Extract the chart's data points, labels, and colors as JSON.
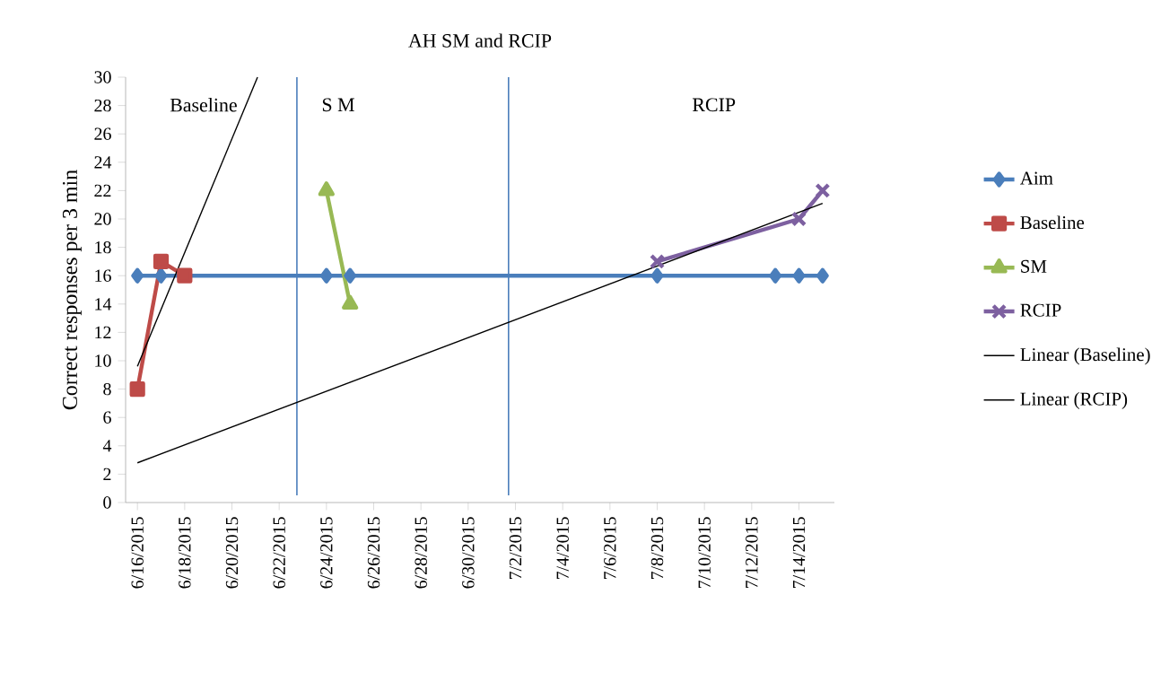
{
  "chart_data": {
    "type": "line",
    "title": "AH SM and RCIP",
    "ylabel": "Correct responses per 3 min",
    "xlim": [
      "2015-06-15T12:00",
      "2015-07-15T12:00"
    ],
    "xticks": [
      {
        "value": "2015-06-16",
        "label": "6/16/2015"
      },
      {
        "value": "2015-06-18",
        "label": "6/18/2015"
      },
      {
        "value": "2015-06-20",
        "label": "6/20/2015"
      },
      {
        "value": "2015-06-22",
        "label": "6/22/2015"
      },
      {
        "value": "2015-06-24",
        "label": "6/24/2015"
      },
      {
        "value": "2015-06-26",
        "label": "6/26/2015"
      },
      {
        "value": "2015-06-28",
        "label": "6/28/2015"
      },
      {
        "value": "2015-06-30",
        "label": "6/30/2015"
      },
      {
        "value": "2015-07-02",
        "label": "7/2/2015"
      },
      {
        "value": "2015-07-04",
        "label": "7/4/2015"
      },
      {
        "value": "2015-07-06",
        "label": "7/6/2015"
      },
      {
        "value": "2015-07-08",
        "label": "7/8/2015"
      },
      {
        "value": "2015-07-10",
        "label": "7/10/2015"
      },
      {
        "value": "2015-07-12",
        "label": "7/12/2015"
      },
      {
        "value": "2015-07-14",
        "label": "7/14/2015"
      }
    ],
    "ylim": [
      0,
      30
    ],
    "yticks": [
      0,
      2,
      4,
      6,
      8,
      10,
      12,
      14,
      16,
      18,
      20,
      22,
      24,
      26,
      28,
      30
    ],
    "legend": "right",
    "series": [
      {
        "name": "Aim",
        "color": "#4a7ebb",
        "marker": "diamond",
        "x": [
          "2015-06-16",
          "2015-06-17",
          "2015-06-24",
          "2015-06-25",
          "2015-07-08",
          "2015-07-13",
          "2015-07-14",
          "2015-07-15"
        ],
        "values": [
          16,
          16,
          16,
          16,
          16,
          16,
          16,
          16
        ]
      },
      {
        "name": "Baseline",
        "color": "#be4b48",
        "marker": "square",
        "x": [
          "2015-06-16",
          "2015-06-17",
          "2015-06-18"
        ],
        "values": [
          8,
          17,
          16
        ]
      },
      {
        "name": "SM",
        "color": "#98b954",
        "marker": "triangle",
        "x": [
          "2015-06-24",
          "2015-06-25"
        ],
        "values": [
          22,
          14
        ]
      },
      {
        "name": "RCIP",
        "color": "#7d60a0",
        "marker": "cross",
        "x": [
          "2015-07-08",
          "2015-07-14",
          "2015-07-15"
        ],
        "values": [
          17,
          20,
          22
        ]
      },
      {
        "name": "Linear (Baseline)",
        "color": "#000000",
        "marker": "none",
        "x": [
          "2015-06-16",
          "2015-06-21T02:00"
        ],
        "values": [
          9.6,
          30
        ]
      },
      {
        "name": "Linear (RCIP)",
        "color": "#000000",
        "marker": "none",
        "x": [
          "2015-06-16",
          "2015-07-15"
        ],
        "values": [
          2.8,
          21.1
        ]
      }
    ],
    "ref_lines": [
      {
        "axis": "x",
        "value": "2015-06-22T18:00",
        "color": "#4a7ebb"
      },
      {
        "axis": "x",
        "value": "2015-07-01T17:00",
        "color": "#4a7ebb"
      }
    ],
    "annotations": [
      "Baseline",
      "S M",
      "RCIP"
    ]
  }
}
